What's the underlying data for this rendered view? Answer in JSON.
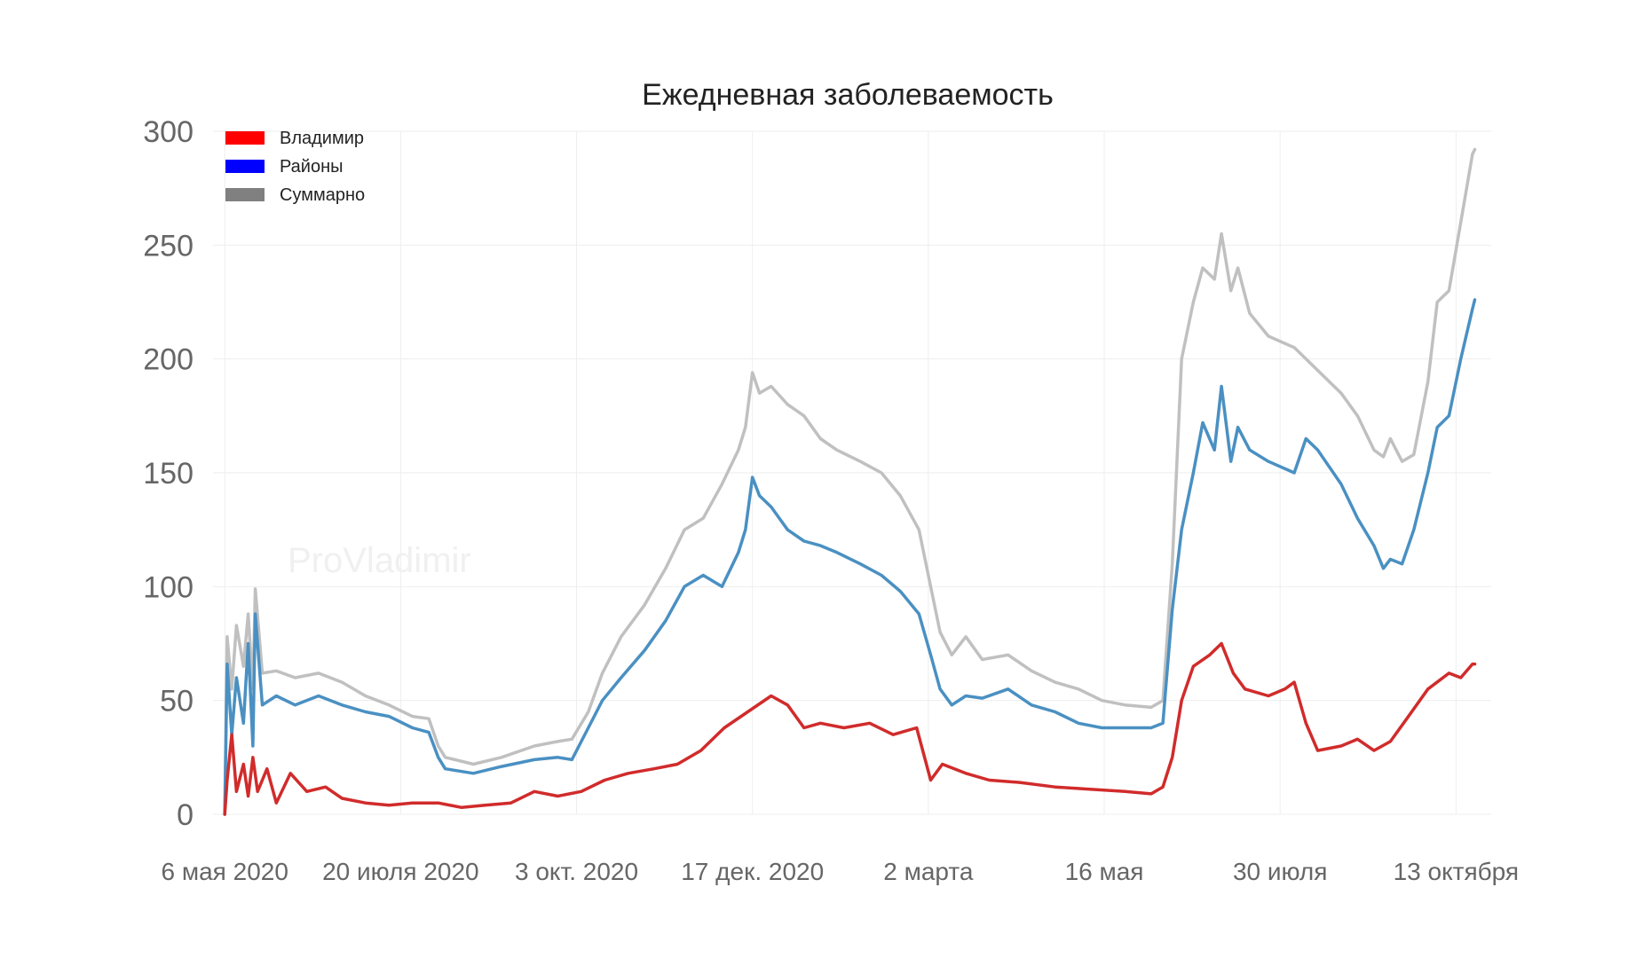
{
  "chart_data": {
    "type": "line",
    "title": "Ежедневная заболеваемость",
    "watermark": "ProVladimir",
    "xlabel": "",
    "ylabel": "",
    "ylim": [
      0,
      300
    ],
    "xlim": [
      "2020-05-01",
      "2021-10-28"
    ],
    "grid": true,
    "legend_position": "top-left",
    "y_ticks": [
      0,
      50,
      100,
      150,
      200,
      250,
      300
    ],
    "x_ticks": [
      {
        "date": "2020-05-06",
        "label": "6 мая 2020"
      },
      {
        "date": "2020-07-20",
        "label": "20 июля 2020"
      },
      {
        "date": "2020-10-03",
        "label": "3 окт. 2020"
      },
      {
        "date": "2020-12-17",
        "label": "17 дек. 2020"
      },
      {
        "date": "2021-03-02",
        "label": "2 марта"
      },
      {
        "date": "2021-05-16",
        "label": "16 мая"
      },
      {
        "date": "2021-07-30",
        "label": "30 июля"
      },
      {
        "date": "2021-10-13",
        "label": "13 октября"
      }
    ],
    "series": [
      {
        "name": "Суммарно",
        "color": "#c0c0c0",
        "legend_color": "#808080",
        "points": [
          [
            "2020-05-06",
            0
          ],
          [
            "2020-05-07",
            78
          ],
          [
            "2020-05-09",
            55
          ],
          [
            "2020-05-11",
            83
          ],
          [
            "2020-05-14",
            65
          ],
          [
            "2020-05-16",
            88
          ],
          [
            "2020-05-18",
            55
          ],
          [
            "2020-05-19",
            99
          ],
          [
            "2020-05-22",
            62
          ],
          [
            "2020-05-28",
            63
          ],
          [
            "2020-06-05",
            60
          ],
          [
            "2020-06-15",
            62
          ],
          [
            "2020-06-25",
            58
          ],
          [
            "2020-07-05",
            52
          ],
          [
            "2020-07-15",
            48
          ],
          [
            "2020-07-25",
            43
          ],
          [
            "2020-08-01",
            42
          ],
          [
            "2020-08-05",
            30
          ],
          [
            "2020-08-08",
            25
          ],
          [
            "2020-08-20",
            22
          ],
          [
            "2020-09-01",
            25
          ],
          [
            "2020-09-15",
            30
          ],
          [
            "2020-09-25",
            32
          ],
          [
            "2020-10-01",
            33
          ],
          [
            "2020-10-08",
            45
          ],
          [
            "2020-10-14",
            62
          ],
          [
            "2020-10-22",
            78
          ],
          [
            "2020-11-01",
            92
          ],
          [
            "2020-11-10",
            108
          ],
          [
            "2020-11-18",
            125
          ],
          [
            "2020-11-26",
            130
          ],
          [
            "2020-12-04",
            145
          ],
          [
            "2020-12-11",
            160
          ],
          [
            "2020-12-14",
            170
          ],
          [
            "2020-12-17",
            194
          ],
          [
            "2020-12-20",
            185
          ],
          [
            "2020-12-25",
            188
          ],
          [
            "2021-01-01",
            180
          ],
          [
            "2021-01-08",
            175
          ],
          [
            "2021-01-15",
            165
          ],
          [
            "2021-01-22",
            160
          ],
          [
            "2021-02-01",
            155
          ],
          [
            "2021-02-10",
            150
          ],
          [
            "2021-02-18",
            140
          ],
          [
            "2021-02-26",
            125
          ],
          [
            "2021-03-03",
            100
          ],
          [
            "2021-03-07",
            80
          ],
          [
            "2021-03-12",
            70
          ],
          [
            "2021-03-18",
            78
          ],
          [
            "2021-03-25",
            68
          ],
          [
            "2021-04-05",
            70
          ],
          [
            "2021-04-15",
            63
          ],
          [
            "2021-04-25",
            58
          ],
          [
            "2021-05-05",
            55
          ],
          [
            "2021-05-15",
            50
          ],
          [
            "2021-05-25",
            48
          ],
          [
            "2021-06-05",
            47
          ],
          [
            "2021-06-10",
            50
          ],
          [
            "2021-06-14",
            110
          ],
          [
            "2021-06-18",
            200
          ],
          [
            "2021-06-23",
            225
          ],
          [
            "2021-06-27",
            240
          ],
          [
            "2021-07-02",
            235
          ],
          [
            "2021-07-05",
            255
          ],
          [
            "2021-07-09",
            230
          ],
          [
            "2021-07-12",
            240
          ],
          [
            "2021-07-17",
            220
          ],
          [
            "2021-07-25",
            210
          ],
          [
            "2021-08-05",
            205
          ],
          [
            "2021-08-15",
            195
          ],
          [
            "2021-08-25",
            185
          ],
          [
            "2021-09-01",
            175
          ],
          [
            "2021-09-08",
            160
          ],
          [
            "2021-09-12",
            157
          ],
          [
            "2021-09-15",
            165
          ],
          [
            "2021-09-20",
            155
          ],
          [
            "2021-09-25",
            158
          ],
          [
            "2021-10-01",
            190
          ],
          [
            "2021-10-05",
            225
          ],
          [
            "2021-10-10",
            230
          ],
          [
            "2021-10-15",
            260
          ],
          [
            "2021-10-20",
            290
          ],
          [
            "2021-10-21",
            292
          ]
        ]
      },
      {
        "name": "Районы",
        "color": "#4a90c2",
        "legend_color": "#0000ff",
        "points": [
          [
            "2020-05-06",
            0
          ],
          [
            "2020-05-07",
            66
          ],
          [
            "2020-05-09",
            35
          ],
          [
            "2020-05-11",
            60
          ],
          [
            "2020-05-14",
            40
          ],
          [
            "2020-05-16",
            75
          ],
          [
            "2020-05-18",
            30
          ],
          [
            "2020-05-19",
            88
          ],
          [
            "2020-05-22",
            48
          ],
          [
            "2020-05-28",
            52
          ],
          [
            "2020-06-05",
            48
          ],
          [
            "2020-06-15",
            52
          ],
          [
            "2020-06-25",
            48
          ],
          [
            "2020-07-05",
            45
          ],
          [
            "2020-07-15",
            43
          ],
          [
            "2020-07-25",
            38
          ],
          [
            "2020-08-01",
            36
          ],
          [
            "2020-08-05",
            25
          ],
          [
            "2020-08-08",
            20
          ],
          [
            "2020-08-20",
            18
          ],
          [
            "2020-09-01",
            21
          ],
          [
            "2020-09-15",
            24
          ],
          [
            "2020-09-25",
            25
          ],
          [
            "2020-10-01",
            24
          ],
          [
            "2020-10-08",
            38
          ],
          [
            "2020-10-14",
            50
          ],
          [
            "2020-10-22",
            60
          ],
          [
            "2020-11-01",
            72
          ],
          [
            "2020-11-10",
            85
          ],
          [
            "2020-11-18",
            100
          ],
          [
            "2020-11-26",
            105
          ],
          [
            "2020-12-04",
            100
          ],
          [
            "2020-12-11",
            115
          ],
          [
            "2020-12-14",
            125
          ],
          [
            "2020-12-17",
            148
          ],
          [
            "2020-12-20",
            140
          ],
          [
            "2020-12-25",
            135
          ],
          [
            "2021-01-01",
            125
          ],
          [
            "2021-01-08",
            120
          ],
          [
            "2021-01-15",
            118
          ],
          [
            "2021-01-22",
            115
          ],
          [
            "2021-02-01",
            110
          ],
          [
            "2021-02-10",
            105
          ],
          [
            "2021-02-18",
            98
          ],
          [
            "2021-02-26",
            88
          ],
          [
            "2021-03-03",
            70
          ],
          [
            "2021-03-07",
            55
          ],
          [
            "2021-03-12",
            48
          ],
          [
            "2021-03-18",
            52
          ],
          [
            "2021-03-25",
            51
          ],
          [
            "2021-04-05",
            55
          ],
          [
            "2021-04-15",
            48
          ],
          [
            "2021-04-25",
            45
          ],
          [
            "2021-05-05",
            40
          ],
          [
            "2021-05-15",
            38
          ],
          [
            "2021-05-25",
            38
          ],
          [
            "2021-06-05",
            38
          ],
          [
            "2021-06-10",
            40
          ],
          [
            "2021-06-14",
            90
          ],
          [
            "2021-06-18",
            125
          ],
          [
            "2021-06-23",
            150
          ],
          [
            "2021-06-27",
            172
          ],
          [
            "2021-07-02",
            160
          ],
          [
            "2021-07-05",
            188
          ],
          [
            "2021-07-09",
            155
          ],
          [
            "2021-07-12",
            170
          ],
          [
            "2021-07-17",
            160
          ],
          [
            "2021-07-25",
            155
          ],
          [
            "2021-08-05",
            150
          ],
          [
            "2021-08-10",
            165
          ],
          [
            "2021-08-15",
            160
          ],
          [
            "2021-08-25",
            145
          ],
          [
            "2021-09-01",
            130
          ],
          [
            "2021-09-08",
            118
          ],
          [
            "2021-09-12",
            108
          ],
          [
            "2021-09-15",
            112
          ],
          [
            "2021-09-20",
            110
          ],
          [
            "2021-09-25",
            125
          ],
          [
            "2021-10-01",
            150
          ],
          [
            "2021-10-05",
            170
          ],
          [
            "2021-10-10",
            175
          ],
          [
            "2021-10-15",
            200
          ],
          [
            "2021-10-20",
            222
          ],
          [
            "2021-10-21",
            226
          ]
        ]
      },
      {
        "name": "Владимир",
        "color": "#d12b2b",
        "legend_color": "#ff0000",
        "points": [
          [
            "2020-05-06",
            0
          ],
          [
            "2020-05-07",
            15
          ],
          [
            "2020-05-09",
            35
          ],
          [
            "2020-05-11",
            10
          ],
          [
            "2020-05-14",
            22
          ],
          [
            "2020-05-16",
            8
          ],
          [
            "2020-05-18",
            25
          ],
          [
            "2020-05-20",
            10
          ],
          [
            "2020-05-24",
            20
          ],
          [
            "2020-05-28",
            5
          ],
          [
            "2020-06-03",
            18
          ],
          [
            "2020-06-10",
            10
          ],
          [
            "2020-06-18",
            12
          ],
          [
            "2020-06-25",
            7
          ],
          [
            "2020-07-05",
            5
          ],
          [
            "2020-07-15",
            4
          ],
          [
            "2020-07-25",
            5
          ],
          [
            "2020-08-05",
            5
          ],
          [
            "2020-08-15",
            3
          ],
          [
            "2020-08-25",
            4
          ],
          [
            "2020-09-05",
            5
          ],
          [
            "2020-09-15",
            10
          ],
          [
            "2020-09-25",
            8
          ],
          [
            "2020-10-05",
            10
          ],
          [
            "2020-10-15",
            15
          ],
          [
            "2020-10-25",
            18
          ],
          [
            "2020-11-05",
            20
          ],
          [
            "2020-11-15",
            22
          ],
          [
            "2020-11-25",
            28
          ],
          [
            "2020-12-05",
            38
          ],
          [
            "2020-12-15",
            45
          ],
          [
            "2020-12-25",
            52
          ],
          [
            "2021-01-01",
            48
          ],
          [
            "2021-01-08",
            38
          ],
          [
            "2021-01-15",
            40
          ],
          [
            "2021-01-25",
            38
          ],
          [
            "2021-02-05",
            40
          ],
          [
            "2021-02-15",
            35
          ],
          [
            "2021-02-25",
            38
          ],
          [
            "2021-03-03",
            15
          ],
          [
            "2021-03-08",
            22
          ],
          [
            "2021-03-18",
            18
          ],
          [
            "2021-03-28",
            15
          ],
          [
            "2021-04-10",
            14
          ],
          [
            "2021-04-25",
            12
          ],
          [
            "2021-05-10",
            11
          ],
          [
            "2021-05-25",
            10
          ],
          [
            "2021-06-05",
            9
          ],
          [
            "2021-06-10",
            12
          ],
          [
            "2021-06-14",
            25
          ],
          [
            "2021-06-18",
            50
          ],
          [
            "2021-06-23",
            65
          ],
          [
            "2021-06-30",
            70
          ],
          [
            "2021-07-05",
            75
          ],
          [
            "2021-07-10",
            62
          ],
          [
            "2021-07-15",
            55
          ],
          [
            "2021-07-25",
            52
          ],
          [
            "2021-08-01",
            55
          ],
          [
            "2021-08-05",
            58
          ],
          [
            "2021-08-10",
            40
          ],
          [
            "2021-08-15",
            28
          ],
          [
            "2021-08-25",
            30
          ],
          [
            "2021-09-01",
            33
          ],
          [
            "2021-09-08",
            28
          ],
          [
            "2021-09-15",
            32
          ],
          [
            "2021-09-22",
            42
          ],
          [
            "2021-10-01",
            55
          ],
          [
            "2021-10-10",
            62
          ],
          [
            "2021-10-15",
            60
          ],
          [
            "2021-10-20",
            66
          ],
          [
            "2021-10-21",
            66
          ]
        ]
      }
    ]
  }
}
